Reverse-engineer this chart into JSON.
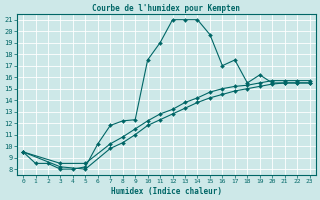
{
  "title": "Courbe de l'humidex pour Kempten",
  "xlabel": "Humidex (Indice chaleur)",
  "bg_color": "#cde8e8",
  "grid_color": "#ffffff",
  "line_color": "#006666",
  "xlim": [
    -0.5,
    23.5
  ],
  "ylim": [
    7.5,
    21.5
  ],
  "xticks": [
    0,
    1,
    2,
    3,
    4,
    5,
    6,
    7,
    8,
    9,
    10,
    11,
    12,
    13,
    14,
    15,
    16,
    17,
    18,
    19,
    20,
    21,
    22,
    23
  ],
  "yticks": [
    8,
    9,
    10,
    11,
    12,
    13,
    14,
    15,
    16,
    17,
    18,
    19,
    20,
    21
  ],
  "line1_x": [
    0,
    1,
    2,
    3,
    4,
    5,
    6,
    7,
    8,
    9,
    10,
    11,
    12,
    13,
    14,
    15,
    16,
    17,
    18,
    19,
    20,
    21,
    22,
    23
  ],
  "line1_y": [
    9.5,
    8.5,
    8.5,
    8.0,
    8.0,
    8.2,
    10.2,
    11.8,
    12.2,
    12.3,
    17.5,
    19.0,
    21.0,
    21.0,
    21.0,
    19.7,
    17.0,
    17.5,
    15.5,
    16.2,
    15.5,
    15.5,
    15.5,
    15.5
  ],
  "line2_x": [
    0,
    3,
    5,
    7,
    8,
    9,
    10,
    11,
    12,
    13,
    14,
    15,
    16,
    17,
    18,
    19,
    20,
    21,
    22,
    23
  ],
  "line2_y": [
    9.5,
    8.5,
    8.5,
    10.2,
    10.8,
    11.5,
    12.2,
    12.8,
    13.2,
    13.8,
    14.2,
    14.7,
    15.0,
    15.2,
    15.3,
    15.5,
    15.7,
    15.7,
    15.7,
    15.7
  ],
  "line3_x": [
    0,
    3,
    5,
    7,
    8,
    9,
    10,
    11,
    12,
    13,
    14,
    15,
    16,
    17,
    18,
    19,
    20,
    21,
    22,
    23
  ],
  "line3_y": [
    9.5,
    8.2,
    8.0,
    9.8,
    10.3,
    11.0,
    11.8,
    12.3,
    12.8,
    13.3,
    13.8,
    14.2,
    14.5,
    14.8,
    15.0,
    15.2,
    15.4,
    15.5,
    15.5,
    15.5
  ]
}
